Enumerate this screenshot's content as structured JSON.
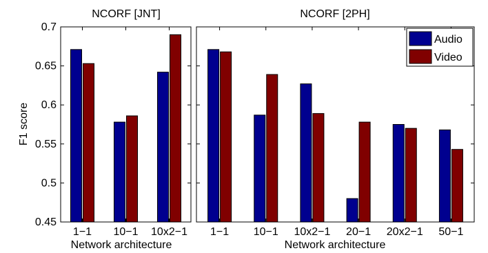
{
  "colors": {
    "audio": "#00008f",
    "video": "#800000",
    "axis": "#000000",
    "background": "#ffffff"
  },
  "chart_data": [
    {
      "type": "bar",
      "title": "NCORF [JNT]",
      "xlabel": "Network architecture",
      "ylabel": "F1 score",
      "ylim": [
        0.45,
        0.7
      ],
      "yticks": [
        "0.45",
        "0.5",
        "0.55",
        "0.6",
        "0.65",
        "0.7"
      ],
      "categories": [
        "1−1",
        "10−1",
        "10x2−1"
      ],
      "series": [
        {
          "name": "Audio",
          "values": [
            0.671,
            0.578,
            0.642
          ]
        },
        {
          "name": "Video",
          "values": [
            0.653,
            0.586,
            0.69
          ]
        }
      ],
      "grid": false
    },
    {
      "type": "bar",
      "title": "NCORF [2PH]",
      "xlabel": "Network architecture",
      "ylabel": "",
      "ylim": [
        0.45,
        0.7
      ],
      "categories": [
        "1−1",
        "10−1",
        "10x2−1",
        "20−1",
        "20x2−1",
        "50−1"
      ],
      "series": [
        {
          "name": "Audio",
          "values": [
            0.671,
            0.587,
            0.627,
            0.48,
            0.575,
            0.568
          ]
        },
        {
          "name": "Video",
          "values": [
            0.668,
            0.639,
            0.589,
            0.578,
            0.57,
            0.543
          ]
        }
      ],
      "legend": {
        "position": "top-right",
        "entries": [
          "Audio",
          "Video"
        ]
      },
      "grid": false
    }
  ]
}
